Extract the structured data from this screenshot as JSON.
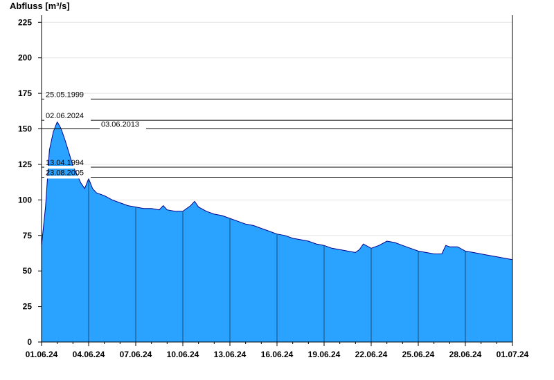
{
  "chart_data": {
    "type": "area",
    "ylabel": "Abfluss [m³/s]",
    "ylim": [
      0,
      230
    ],
    "yticks": [
      0,
      25,
      50,
      75,
      100,
      125,
      150,
      175,
      200,
      225
    ],
    "xlim": [
      "01.06.24",
      "01.07.24"
    ],
    "xtick_labels": [
      "01.06.24",
      "04.06.24",
      "07.06.24",
      "10.06.24",
      "13.06.24",
      "16.06.24",
      "19.06.24",
      "22.06.24",
      "25.06.24",
      "28.06.24",
      "01.07.24"
    ],
    "grid": "horizontal, light grey",
    "series_color": "#29a3ff",
    "outline_color": "#00008b",
    "reference_lines": [
      {
        "label": "25.05.1999",
        "value": 171
      },
      {
        "label": "02.06.2024",
        "value": 156
      },
      {
        "label": "03.06.2013",
        "value": 150
      },
      {
        "label": "13.04.1994",
        "value": 123
      },
      {
        "label": "23.08.2005",
        "value": 116
      }
    ],
    "x": [
      "01.06.24 00:00",
      "01.06.24 06:00",
      "01.06.24 12:00",
      "01.06.24 18:00",
      "02.06.24 00:00",
      "02.06.24 06:00",
      "02.06.24 12:00",
      "02.06.24 18:00",
      "03.06.24 00:00",
      "03.06.24 06:00",
      "03.06.24 12:00",
      "03.06.24 18:00",
      "04.06.24 00:00",
      "04.06.24 06:00",
      "04.06.24 12:00",
      "05.06.24 00:00",
      "05.06.24 12:00",
      "06.06.24 00:00",
      "06.06.24 12:00",
      "07.06.24 00:00",
      "07.06.24 12:00",
      "08.06.24 00:00",
      "08.06.24 12:00",
      "08.06.24 18:00",
      "09.06.24 00:00",
      "09.06.24 12:00",
      "10.06.24 00:00",
      "10.06.24 12:00",
      "10.06.24 18:00",
      "11.06.24 00:00",
      "11.06.24 12:00",
      "12.06.24 00:00",
      "12.06.24 12:00",
      "13.06.24 00:00",
      "13.06.24 12:00",
      "14.06.24 00:00",
      "14.06.24 12:00",
      "15.06.24 00:00",
      "15.06.24 12:00",
      "16.06.24 00:00",
      "16.06.24 12:00",
      "17.06.24 00:00",
      "17.06.24 12:00",
      "18.06.24 00:00",
      "18.06.24 12:00",
      "19.06.24 00:00",
      "19.06.24 12:00",
      "20.06.24 00:00",
      "20.06.24 12:00",
      "21.06.24 00:00",
      "21.06.24 06:00",
      "21.06.24 12:00",
      "22.06.24 00:00",
      "22.06.24 12:00",
      "23.06.24 00:00",
      "23.06.24 12:00",
      "24.06.24 00:00",
      "24.06.24 12:00",
      "25.06.24 00:00",
      "25.06.24 12:00",
      "26.06.24 00:00",
      "26.06.24 12:00",
      "26.06.24 18:00",
      "27.06.24 00:00",
      "27.06.24 12:00",
      "28.06.24 00:00",
      "28.06.24 12:00",
      "29.06.24 00:00",
      "29.06.24 12:00",
      "30.06.24 00:00",
      "30.06.24 12:00",
      "01.07.24 00:00"
    ],
    "values": [
      68,
      95,
      135,
      148,
      155,
      150,
      142,
      133,
      124,
      118,
      112,
      108,
      115,
      108,
      105,
      103,
      100,
      98,
      96,
      95,
      94,
      94,
      93,
      96,
      93,
      92,
      92,
      96,
      99,
      95,
      92,
      90,
      89,
      87,
      85,
      83,
      82,
      80,
      78,
      76,
      75,
      73,
      72,
      71,
      69,
      68,
      66,
      65,
      64,
      63,
      65,
      69,
      66,
      68,
      71,
      70,
      68,
      66,
      64,
      63,
      62,
      62,
      68,
      67,
      67,
      64,
      63,
      62,
      61,
      60,
      59,
      58
    ]
  }
}
